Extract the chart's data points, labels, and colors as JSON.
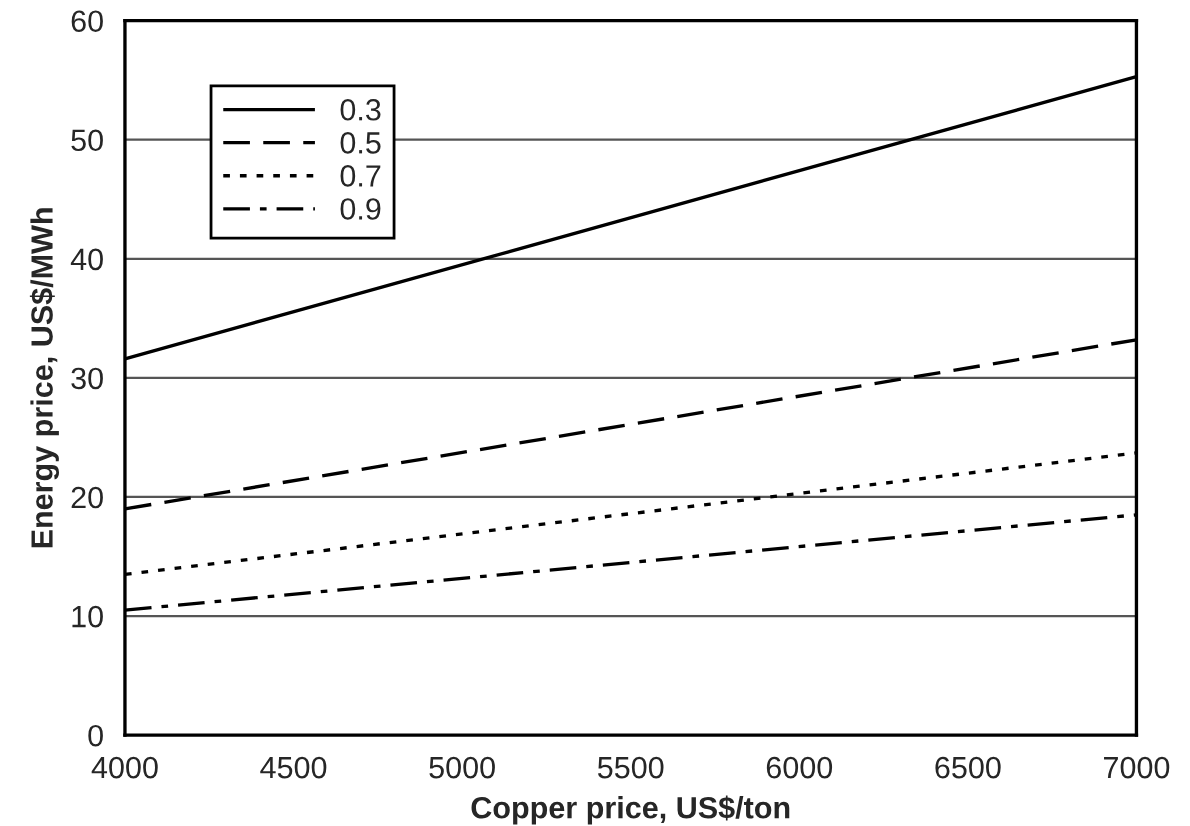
{
  "chart_data": {
    "type": "line",
    "xlabel": "Copper price, US$/ton",
    "ylabel": "Energy price, US$/MWh",
    "x": [
      4000,
      7000
    ],
    "series": [
      {
        "name": "0.3",
        "color": "#000000",
        "line_style": "solid",
        "values": [
          31.6,
          55.3
        ]
      },
      {
        "name": "0.5",
        "color": "#000000",
        "line_style": "dashed",
        "values": [
          19.0,
          33.2
        ]
      },
      {
        "name": "0.7",
        "color": "#000000",
        "line_style": "dotted",
        "values": [
          13.5,
          23.7
        ]
      },
      {
        "name": "0.9",
        "color": "#000000",
        "line_style": "dashdot",
        "values": [
          10.5,
          18.5
        ]
      }
    ],
    "xlim": [
      4000,
      7000
    ],
    "xticks": [
      4000,
      4500,
      5000,
      5500,
      6000,
      6500,
      7000
    ],
    "ylim": [
      0,
      60
    ],
    "yticks": [
      0,
      10,
      20,
      30,
      40,
      50,
      60
    ],
    "grid": "y",
    "legend": "top left",
    "marker": "none"
  }
}
